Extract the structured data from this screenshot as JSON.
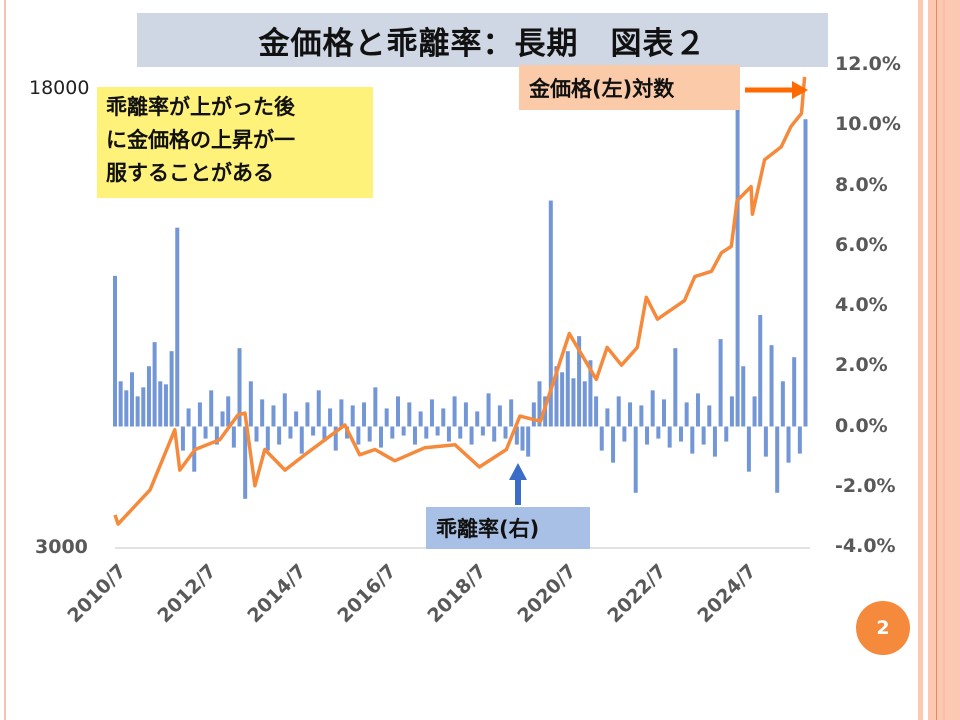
{
  "title": "金価格と乖離率：長期　図表２",
  "note_lines": [
    "乖離率が上がった後",
    "に金価格の上昇が一",
    "服することがある"
  ],
  "gold_label": "金価格(左)対数",
  "deviation_label": "乖離率(右)",
  "page_number": "2",
  "colors": {
    "gold": "#f58a3c",
    "deviation": "#7296d6",
    "title_bg": "#cfd6e4",
    "note_bg": "#fff27a",
    "gold_label_bg": "#fbcba9",
    "dev_label_bg": "#a9c0e6",
    "arrow_orange": "#ff6a00",
    "arrow_blue": "#3a6cc8"
  },
  "chart_data": {
    "type": "line+bar",
    "title": "金価格と乖離率：長期　図表２",
    "x_tick_labels": [
      "2010/7",
      "2012/7",
      "2014/7",
      "2016/7",
      "2018/7",
      "2020/7",
      "2022/7",
      "2024/7"
    ],
    "x_ticks_year": [
      2010.5,
      2012.5,
      2014.5,
      2016.5,
      2018.5,
      2020.5,
      2022.5,
      2024.5
    ],
    "xlim": [
      2010.5,
      2025.95
    ],
    "left_axis": {
      "label": "金価格(左)対数",
      "scale": "log",
      "ylim": [
        3000,
        18000
      ],
      "tick_labels": [
        "18000",
        "3000"
      ]
    },
    "right_axis": {
      "label": "乖離率(右)",
      "ylim": [
        -4.0,
        12.0
      ],
      "unit": "%",
      "tick_values": [
        12,
        10,
        8,
        6,
        4,
        2,
        0,
        -2,
        -4
      ],
      "tick_labels": [
        "12.0%",
        "10.0%",
        "8.0%",
        "6.0%",
        "4.0%",
        "2.0%",
        "0.0%",
        "-2.0%",
        "-4.0%"
      ]
    },
    "series": [
      {
        "name": "金価格(左)対数",
        "type": "line",
        "axis": "left",
        "points": [
          [
            2010.5,
            3400
          ],
          [
            2010.57,
            3280
          ],
          [
            2011.28,
            3750
          ],
          [
            2011.83,
            4740
          ],
          [
            2011.94,
            4050
          ],
          [
            2012.28,
            4390
          ],
          [
            2012.83,
            4560
          ],
          [
            2013.23,
            5020
          ],
          [
            2013.39,
            5060
          ],
          [
            2013.61,
            3810
          ],
          [
            2013.83,
            4390
          ],
          [
            2014.28,
            4050
          ],
          [
            2014.72,
            4300
          ],
          [
            2015.17,
            4560
          ],
          [
            2015.61,
            4830
          ],
          [
            2015.94,
            4300
          ],
          [
            2016.28,
            4390
          ],
          [
            2016.72,
            4200
          ],
          [
            2017.39,
            4420
          ],
          [
            2018.06,
            4470
          ],
          [
            2018.6,
            4100
          ],
          [
            2019.2,
            4390
          ],
          [
            2019.5,
            5000
          ],
          [
            2019.96,
            4900
          ],
          [
            2020.6,
            6900
          ],
          [
            2021.2,
            5770
          ],
          [
            2021.44,
            6540
          ],
          [
            2021.76,
            6100
          ],
          [
            2022.11,
            6540
          ],
          [
            2022.31,
            7950
          ],
          [
            2022.56,
            7300
          ],
          [
            2023.16,
            7850
          ],
          [
            2023.39,
            8620
          ],
          [
            2023.76,
            8800
          ],
          [
            2023.98,
            9460
          ],
          [
            2024.2,
            9700
          ],
          [
            2024.33,
            11600
          ],
          [
            2024.64,
            12250
          ],
          [
            2024.67,
            11000
          ],
          [
            2024.94,
            13600
          ],
          [
            2025.31,
            14300
          ],
          [
            2025.53,
            15500
          ],
          [
            2025.76,
            16300
          ],
          [
            2025.83,
            18800
          ]
        ]
      },
      {
        "name": "乖離率(右)",
        "type": "bar",
        "axis": "right",
        "unit": "%",
        "start": 2010.5,
        "end": 2025.85,
        "values": [
          5.0,
          1.5,
          1.2,
          1.8,
          1.0,
          1.3,
          2.0,
          2.8,
          1.5,
          1.4,
          2.5,
          6.6,
          -0.8,
          0.6,
          -1.5,
          0.8,
          -0.4,
          1.2,
          -0.6,
          0.5,
          1.0,
          -0.7,
          2.6,
          -2.4,
          1.5,
          -0.5,
          0.9,
          -0.8,
          0.7,
          -0.6,
          1.1,
          -0.4,
          0.5,
          -0.9,
          0.8,
          -0.3,
          1.2,
          -0.5,
          0.6,
          -0.8,
          0.9,
          -0.4,
          0.7,
          -0.6,
          0.8,
          -0.5,
          1.3,
          -0.7,
          0.6,
          -0.4,
          1.0,
          -0.3,
          0.8,
          -0.6,
          0.5,
          -0.4,
          0.9,
          -0.3,
          0.6,
          -0.5,
          1.0,
          -0.4,
          0.8,
          -0.6,
          0.5,
          -0.3,
          1.1,
          -0.5,
          0.7,
          -0.4,
          0.9,
          -0.6,
          -0.8,
          -1.0,
          0.8,
          1.5,
          1.0,
          7.5,
          2.0,
          1.8,
          2.5,
          1.6,
          3.0,
          1.5,
          2.2,
          1.0,
          -0.8,
          0.6,
          -1.2,
          1.0,
          -0.5,
          0.8,
          -2.2,
          0.7,
          -0.6,
          1.2,
          -0.4,
          0.9,
          -0.7,
          2.6,
          -0.5,
          0.8,
          -0.9,
          1.1,
          -0.6,
          0.7,
          -1.0,
          2.9,
          -0.5,
          1.0,
          11.0,
          2.0,
          -1.5,
          1.0,
          3.7,
          -1.0,
          2.7,
          -2.2,
          1.5,
          -1.2,
          2.3,
          -0.9,
          10.2
        ]
      }
    ],
    "annotations": [
      "乖離率が上がった後に金価格の上昇が一服することがある"
    ],
    "grid": false,
    "legend": "none"
  }
}
